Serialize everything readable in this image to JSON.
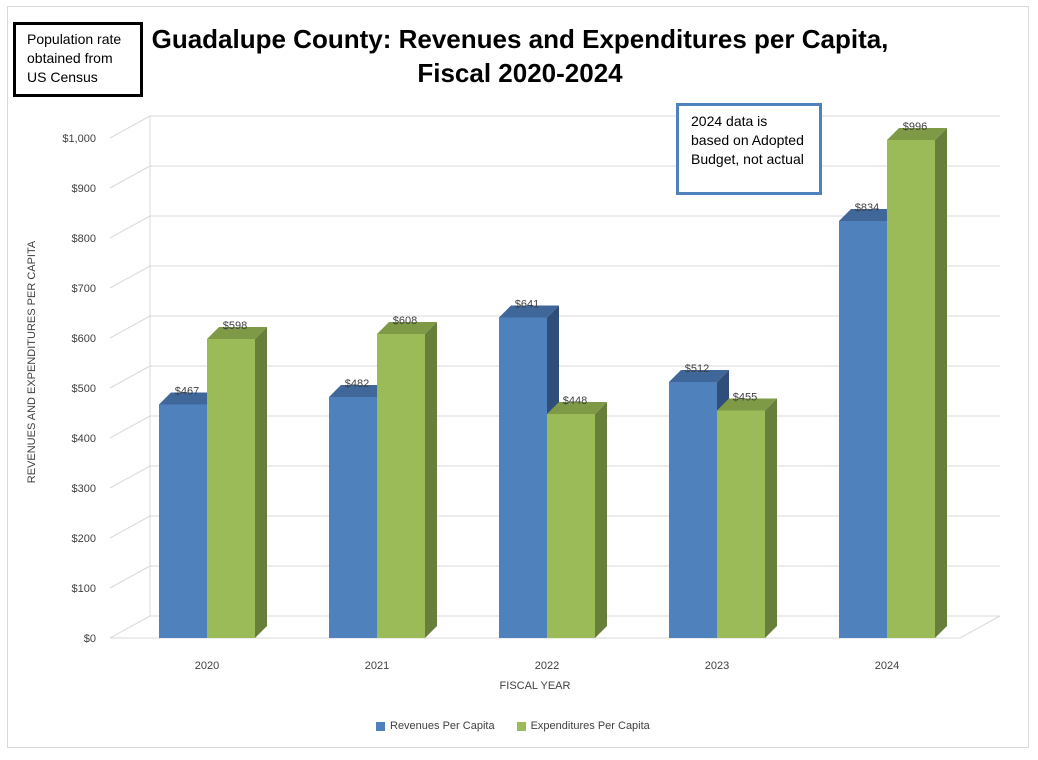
{
  "colors": {
    "revenues": "#4f81bd",
    "revenues_top": "#3f679a",
    "revenues_side": "#2f4f7a",
    "expenditures": "#9bbb59",
    "expenditures_top": "#7e9a47",
    "expenditures_side": "#677f3a",
    "grid": "#d9d9d9",
    "callout_border": "#4f81bd"
  },
  "note": {
    "lines": [
      "Population rate",
      "obtained from",
      "US Census"
    ]
  },
  "callout": {
    "lines": [
      "2024 data is",
      "based on Adopted",
      "Budget, not actual"
    ]
  },
  "chart_data": {
    "type": "bar",
    "title": "Guadalupe County: Revenues and Expenditures per Capita, Fiscal 2020-2024",
    "title_lines": [
      "Guadalupe County: Revenues and Expenditures per Capita,",
      "Fiscal 2020-2024"
    ],
    "categories": [
      "2020",
      "2021",
      "2022",
      "2023",
      "2024"
    ],
    "series": [
      {
        "name": "Revenues Per Capita",
        "values": [
          467,
          482,
          641,
          512,
          834
        ],
        "labels": [
          "$467",
          "$482",
          "$641",
          "$512",
          "$834"
        ]
      },
      {
        "name": "Expenditures Per Capita",
        "values": [
          598,
          608,
          448,
          455,
          996
        ],
        "labels": [
          "$598",
          "$608",
          "$448",
          "$455",
          "$996"
        ]
      }
    ],
    "xlabel": "FISCAL YEAR",
    "ylabel": "REVENUES AND EXPENDITURES PER CAPITA",
    "ylim": [
      0,
      1000
    ],
    "yticks": [
      0,
      100,
      200,
      300,
      400,
      500,
      600,
      700,
      800,
      900,
      1000
    ],
    "ytick_labels": [
      "$0",
      "$100",
      "$200",
      "$300",
      "$400",
      "$500",
      "$600",
      "$700",
      "$800",
      "$900",
      "$1,000"
    ],
    "legend_position": "bottom",
    "grid": true
  }
}
